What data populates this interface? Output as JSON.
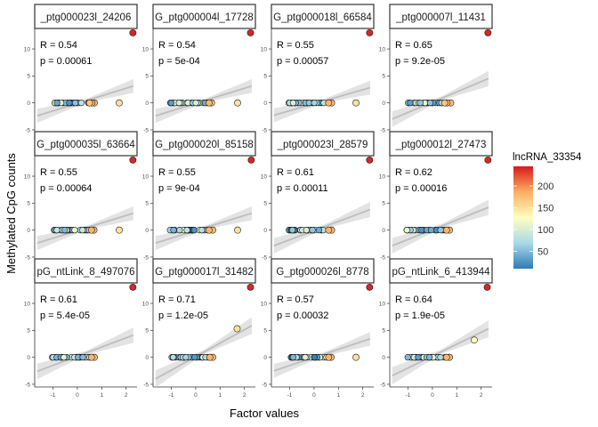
{
  "chart_data": {
    "type": "scatter",
    "xlabel": "Factor values",
    "ylabel": "Methylated CpG counts",
    "xticks": [
      -1,
      0,
      1,
      2
    ],
    "xlim": [
      -1.75,
      2.45
    ],
    "legend": {
      "title": "lncRNA_33354",
      "placement": "right",
      "range": [
        10,
        245
      ],
      "ticks": [
        50,
        100,
        150,
        200
      ],
      "colors": [
        "#2c7bb6",
        "#abd9e9",
        "#ffffbf",
        "#fdae61",
        "#d7191c"
      ]
    },
    "trend_color": "#bdbdbd",
    "band_color": "#d9d9d9",
    "rows": [
      {
        "ylim": [
          -5.5,
          13.8
        ],
        "yticks": [
          -5,
          0,
          5,
          10
        ],
        "panels": [
          {
            "strip": "_ptg000023l_24206",
            "r_text": "R = 0.54",
            "p_text": "p = 0.00061",
            "fit": {
              "intercept": 0.9,
              "slope": 1.4,
              "se": 0.9
            },
            "points": [
              [
                2.28,
                13.0,
                240
              ],
              [
                1.72,
                0.0,
                150
              ],
              [
                0.7,
                0,
                175
              ],
              [
                0.6,
                0,
                185
              ],
              [
                0.5,
                0,
                170
              ]
            ]
          },
          {
            "strip": "G_ptg000004l_17728",
            "r_text": "R = 0.54",
            "p_text": "p = 5e-04",
            "fit": {
              "intercept": 0.9,
              "slope": 1.4,
              "se": 0.9
            },
            "points": [
              [
                2.25,
                13.0,
                240
              ],
              [
                1.72,
                0.0,
                150
              ],
              [
                0.65,
                0,
                175
              ],
              [
                0.55,
                0,
                180
              ]
            ]
          },
          {
            "strip": "G_ptg000018l_66584",
            "r_text": "R = 0.55",
            "p_text": "p = 0.00057",
            "fit": {
              "intercept": 0.8,
              "slope": 1.3,
              "se": 0.9
            },
            "points": [
              [
                2.28,
                13.0,
                240
              ],
              [
                1.72,
                0.0,
                150
              ],
              [
                0.72,
                0,
                178
              ],
              [
                0.6,
                0,
                182
              ]
            ]
          },
          {
            "strip": "_ptg000007l_11431",
            "r_text": "R = 0.65",
            "p_text": "p = 9.2e-05",
            "fit": {
              "intercept": 1.3,
              "slope": 1.9,
              "se": 1.0
            },
            "points": [
              [
                2.28,
                13.0,
                240
              ],
              [
                0.75,
                0,
                175
              ],
              [
                0.6,
                0,
                182
              ],
              [
                0.5,
                0,
                170
              ]
            ]
          }
        ]
      },
      {
        "ylim": [
          -5.5,
          13.8
        ],
        "yticks": [
          -5,
          0,
          5,
          10
        ],
        "panels": [
          {
            "strip": "G_ptg000035l_63664",
            "r_text": "R = 0.55",
            "p_text": "p = 0.00064",
            "fit": {
              "intercept": 0.9,
              "slope": 1.4,
              "se": 0.9
            },
            "points": [
              [
                2.28,
                13.0,
                240
              ],
              [
                1.72,
                0.0,
                150
              ],
              [
                0.68,
                0,
                176
              ],
              [
                0.58,
                0,
                183
              ]
            ]
          },
          {
            "strip": "G_ptg000020l_85158",
            "r_text": "R = 0.55",
            "p_text": "p = 9e-04",
            "fit": {
              "intercept": 0.9,
              "slope": 1.4,
              "se": 0.9
            },
            "points": [
              [
                2.28,
                13.0,
                240
              ],
              [
                1.72,
                0.0,
                150
              ],
              [
                0.7,
                0,
                175
              ],
              [
                0.55,
                0,
                182
              ]
            ]
          },
          {
            "strip": "_ptg000023l_28579",
            "r_text": "R = 0.61",
            "p_text": "p = 0.00011",
            "fit": {
              "intercept": 1.0,
              "slope": 1.7,
              "se": 1.0
            },
            "points": [
              [
                2.28,
                13.0,
                240
              ],
              [
                0.72,
                0,
                178
              ],
              [
                0.6,
                0,
                182
              ]
            ]
          },
          {
            "strip": "_ptg000012l_27473",
            "r_text": "R = 0.62",
            "p_text": "p = 0.00016",
            "fit": {
              "intercept": 1.2,
              "slope": 1.8,
              "se": 1.0
            },
            "points": [
              [
                2.28,
                13.0,
                240
              ],
              [
                0.7,
                0,
                176
              ],
              [
                0.58,
                0,
                182
              ]
            ]
          }
        ]
      },
      {
        "ylim": [
          -5.5,
          13.8
        ],
        "yticks": [
          -5,
          0,
          5,
          10
        ],
        "panels": [
          {
            "strip": "pG_ntLink_8_497076",
            "r_text": "R = 0.61",
            "p_text": "p = 5.4e-05",
            "fit": {
              "intercept": 1.3,
              "slope": 1.7,
              "se": 1.0
            },
            "points": [
              [
                2.28,
                13.0,
                240
              ],
              [
                0.7,
                0,
                176
              ],
              [
                0.58,
                0,
                182
              ]
            ]
          },
          {
            "strip": "G_ptg000017l_31482",
            "r_text": "R = 0.71",
            "p_text": "p = 1.2e-05",
            "fit": {
              "intercept": 1.5,
              "slope": 2.5,
              "se": 1.1
            },
            "points": [
              [
                2.25,
                13.0,
                240
              ],
              [
                1.7,
                5.3,
                150
              ],
              [
                0.7,
                0,
                176
              ],
              [
                0.58,
                0,
                182
              ]
            ]
          },
          {
            "strip": "G_ptg000026l_8778",
            "r_text": "R = 0.57",
            "p_text": "p = 0.00032",
            "fit": {
              "intercept": 1.0,
              "slope": 1.5,
              "se": 0.9
            },
            "points": [
              [
                2.28,
                13.0,
                240
              ],
              [
                1.72,
                0.0,
                150
              ],
              [
                0.7,
                0,
                176
              ],
              [
                0.6,
                0,
                182
              ]
            ]
          },
          {
            "strip": "pG_ntLink_6_413944",
            "r_text": "R = 0.64",
            "p_text": "p = 1.9e-05",
            "fit": {
              "intercept": 1.5,
              "slope": 2.2,
              "se": 1.1
            },
            "points": [
              [
                2.25,
                13.0,
                240
              ],
              [
                1.72,
                3.2,
                130
              ],
              [
                0.7,
                0,
                176
              ],
              [
                0.58,
                0,
                182
              ]
            ]
          }
        ]
      }
    ]
  }
}
